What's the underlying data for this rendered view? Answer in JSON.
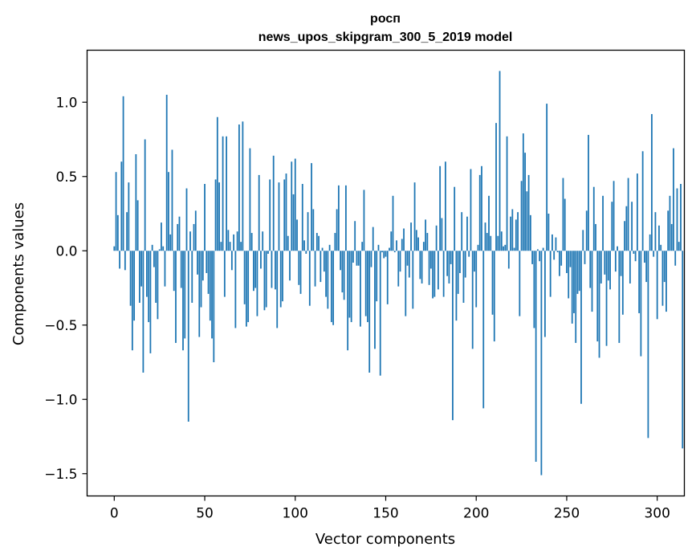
{
  "chart_data": {
    "type": "bar",
    "title": "росп",
    "subtitle": "news_upos_skipgram_300_5_2019 model",
    "xlabel": "Vector components",
    "ylabel": "Components values",
    "xlim": [
      -15,
      315
    ],
    "ylim": [
      -1.65,
      1.35
    ],
    "xticks": [
      0,
      50,
      100,
      150,
      200,
      250,
      300
    ],
    "yticks": [
      -1.5,
      -1.0,
      -0.5,
      0.0,
      0.5,
      1.0
    ],
    "ytick_labels": [
      "−1.5",
      "−1.0",
      "−0.5",
      "0.0",
      "0.5",
      "1.0"
    ],
    "grid": false,
    "color": "#1f77b4",
    "values": [
      0.03,
      0.53,
      0.24,
      -0.12,
      0.6,
      1.04,
      -0.13,
      0.26,
      0.46,
      -0.37,
      -0.67,
      -0.47,
      0.65,
      0.34,
      -0.35,
      -0.24,
      -0.82,
      0.75,
      -0.31,
      -0.48,
      -0.69,
      0.04,
      -0.11,
      -0.35,
      -0.46,
      0.01,
      0.19,
      0.03,
      -0.24,
      1.05,
      0.53,
      0.11,
      0.68,
      -0.27,
      -0.62,
      0.18,
      0.23,
      -0.25,
      -0.67,
      -0.59,
      0.42,
      -1.15,
      0.13,
      -0.35,
      0.18,
      0.27,
      -0.16,
      -0.58,
      -0.38,
      -0.2,
      0.45,
      -0.15,
      -0.29,
      -0.47,
      -0.59,
      -0.75,
      0.48,
      0.9,
      0.46,
      0.06,
      0.77,
      -0.31,
      0.77,
      0.14,
      0.06,
      -0.13,
      0.11,
      -0.52,
      0.13,
      0.85,
      0.06,
      0.87,
      -0.36,
      -0.51,
      -0.48,
      0.69,
      0.12,
      -0.27,
      -0.25,
      -0.44,
      0.51,
      -0.12,
      0.13,
      -0.4,
      -0.38,
      -0.02,
      0.48,
      -0.25,
      0.64,
      -0.26,
      -0.52,
      0.46,
      -0.38,
      -0.34,
      0.48,
      0.52,
      0.1,
      -0.2,
      0.6,
      0.38,
      0.62,
      0.21,
      -0.23,
      -0.29,
      0.45,
      0.07,
      -0.02,
      0.26,
      -0.37,
      0.59,
      0.28,
      -0.24,
      0.12,
      0.1,
      -0.21,
      0.02,
      -0.14,
      -0.31,
      -0.39,
      0.04,
      -0.48,
      -0.5,
      0.12,
      0.28,
      0.44,
      -0.13,
      -0.28,
      -0.33,
      0.44,
      -0.67,
      -0.45,
      -0.48,
      -0.08,
      0.2,
      -0.1,
      -0.1,
      -0.51,
      0.06,
      0.41,
      -0.44,
      -0.48,
      -0.82,
      -0.11,
      0.16,
      -0.66,
      -0.34,
      0.04,
      -0.84,
      -0.01,
      -0.05,
      -0.04,
      -0.36,
      0.02,
      0.13,
      0.37,
      -0.01,
      0.07,
      -0.24,
      -0.14,
      0.08,
      0.15,
      -0.44,
      -0.1,
      -0.18,
      0.19,
      -0.39,
      0.46,
      0.14,
      0.09,
      -0.19,
      -0.22,
      0.06,
      0.21,
      0.12,
      -0.23,
      -0.12,
      -0.32,
      -0.31,
      0.17,
      -0.26,
      0.57,
      0.22,
      -0.31,
      0.6,
      -0.17,
      -0.22,
      -0.09,
      -1.14,
      0.43,
      -0.47,
      -0.29,
      -0.15,
      0.26,
      -0.35,
      -0.18,
      0.23,
      -0.04,
      0.55,
      -0.66,
      -0.14,
      -0.38,
      0.04,
      0.51,
      0.57,
      -1.06,
      0.19,
      0.12,
      0.37,
      0.1,
      -0.43,
      -0.61,
      0.86,
      0.1,
      1.21,
      0.13,
      0.03,
      0.04,
      0.77,
      -0.12,
      0.23,
      0.28,
      0.02,
      0.21,
      0.26,
      -0.44,
      0.47,
      0.79,
      0.66,
      0.4,
      0.51,
      0.24,
      -0.09,
      -0.52,
      -1.42,
      0.01,
      -0.07,
      -1.51,
      0.02,
      -0.58,
      0.99,
      0.25,
      -0.31,
      0.11,
      -0.06,
      0.09,
      -0.01,
      -0.17,
      -0.1,
      0.49,
      0.35,
      -0.15,
      -0.32,
      -0.11,
      -0.49,
      -0.42,
      -0.62,
      -0.29,
      -0.27,
      -1.03,
      0.14,
      -0.09,
      0.27,
      0.78,
      -0.25,
      -0.41,
      0.43,
      0.18,
      -0.61,
      -0.72,
      -0.22,
      0.37,
      -0.16,
      -0.64,
      -0.2,
      -0.26,
      0.33,
      0.47,
      -0.14,
      0.03,
      -0.62,
      -0.17,
      -0.43,
      0.2,
      0.3,
      0.49,
      -0.22,
      0.33,
      -0.02,
      -0.07,
      0.52,
      -0.42,
      -0.71,
      0.67,
      -0.08,
      -0.21,
      -1.26,
      0.11,
      0.92,
      -0.04,
      0.26,
      -0.46,
      0.17,
      0.04,
      -0.37,
      -0.21,
      -0.41,
      0.27,
      0.37,
      0.18,
      0.69,
      -0.1,
      0.42,
      0.06,
      0.45,
      -1.33
    ]
  }
}
